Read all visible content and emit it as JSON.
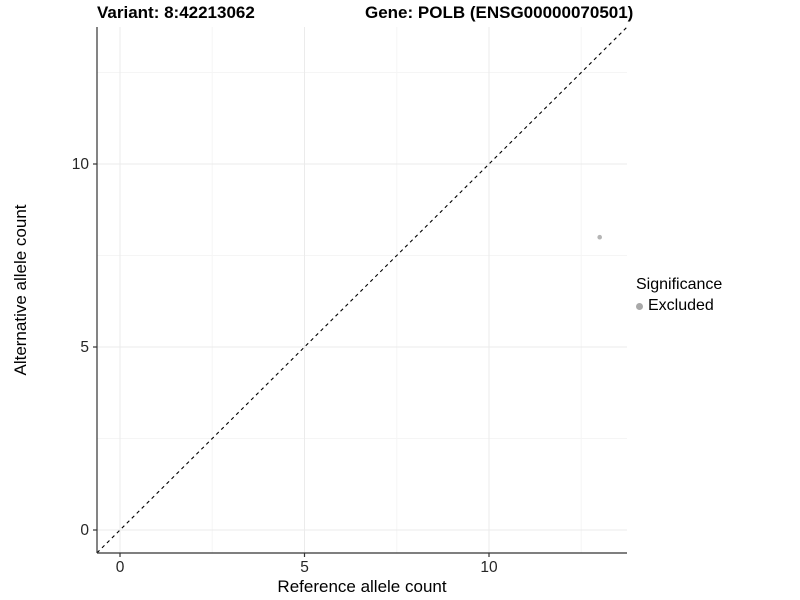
{
  "header": {
    "variant_title": "Variant: 8:42213062",
    "gene_title": "Gene: POLB (ENSG00000070501)"
  },
  "chart_data": {
    "type": "scatter",
    "title": "Variant: 8:42213062  Gene: POLB (ENSG00000070501)",
    "xlabel": "Reference allele count",
    "ylabel": "Alternative allele count",
    "xlim": [
      -0.65,
      13.74
    ],
    "ylim": [
      -0.63,
      13.74
    ],
    "grid": true,
    "x_major_ticks": [
      0,
      5,
      10
    ],
    "x_minor_ticks": [
      2.5,
      7.5,
      12.5
    ],
    "y_major_ticks": [
      0,
      5,
      10
    ],
    "y_minor_ticks": [
      2.5,
      7.5,
      12.5
    ],
    "identity_line": {
      "type": "abline",
      "slope": 1,
      "intercept": 0,
      "style": "dashed",
      "color": "#000000"
    },
    "series": [
      {
        "name": "Excluded",
        "point_color": "#b5b5b5",
        "points": [
          {
            "x": 13,
            "y": 8
          }
        ]
      }
    ],
    "legend": {
      "title": "Significance",
      "position": "right",
      "items": [
        {
          "label": "Excluded",
          "color": "#a9a9a9"
        }
      ]
    }
  },
  "style_colors": {
    "axis_line": "#333333",
    "tick_mark": "#333333",
    "tick_label": "#262626",
    "grid_major": "#ebebeb",
    "grid_minor": "#f5f5f5"
  }
}
